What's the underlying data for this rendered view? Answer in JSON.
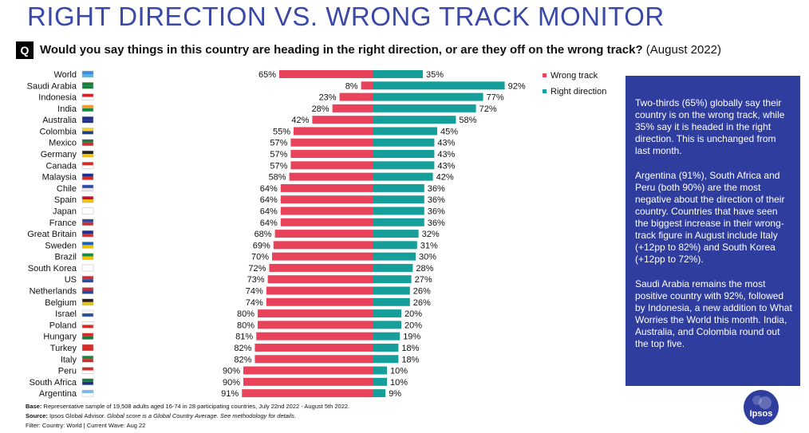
{
  "header": {
    "title": "RIGHT DIRECTION VS. WRONG TRACK MONITOR",
    "badge": "Q",
    "question": "Would you say things in this country are heading in the right direction, or are they off on the wrong track?",
    "date": "(August 2022)"
  },
  "colors": {
    "wrong": "#e8435a",
    "right": "#169f9a",
    "box": "#2f3d9e",
    "title": "#3a49a8"
  },
  "chart_data": {
    "type": "bar",
    "orientation": "horizontal-diverging",
    "categories": [
      "World",
      "Saudi Arabia",
      "Indonesia",
      "India",
      "Australia",
      "Colombia",
      "Mexico",
      "Germany",
      "Canada",
      "Malaysia",
      "Chile",
      "Spain",
      "Japan",
      "France",
      "Great Britain",
      "Sweden",
      "Brazil",
      "South Korea",
      "US",
      "Netherlands",
      "Belgium",
      "Israel",
      "Poland",
      "Hungary",
      "Turkey",
      "Italy",
      "Peru",
      "South Africa",
      "Argentina"
    ],
    "series": [
      {
        "name": "Wrong track",
        "values": [
          65,
          8,
          23,
          28,
          42,
          55,
          57,
          57,
          57,
          58,
          64,
          64,
          64,
          64,
          68,
          69,
          70,
          72,
          73,
          74,
          74,
          80,
          80,
          81,
          82,
          82,
          90,
          90,
          91
        ]
      },
      {
        "name": "Right direction",
        "values": [
          35,
          92,
          77,
          72,
          58,
          45,
          43,
          43,
          43,
          42,
          36,
          36,
          36,
          36,
          32,
          31,
          30,
          28,
          27,
          26,
          26,
          20,
          20,
          19,
          18,
          18,
          10,
          10,
          9
        ]
      }
    ],
    "value_suffix": "%",
    "legend": [
      "Wrong track",
      "Right direction"
    ],
    "legend_position": "right"
  },
  "legend": {
    "wrong_label": "Wrong track",
    "right_label": "Right direction"
  },
  "info_box": {
    "p1": "Two-thirds (65%) globally say their country is on the wrong track, while 35% say it is headed in the right direction. This is unchanged from last month.",
    "p2": "Argentina (91%), South Africa and Peru (both 90%) are the most negative about the direction of their country. Countries that have seen the biggest increase in their wrong-track figure in August include Italy (+12pp to 82%) and South Korea (+12pp to 72%).",
    "p3": "Saudi Arabia remains the most positive country with 92%, followed by Indonesia, a new addition to What Worries the World this month. India, Australia, and Colombia round out the top five."
  },
  "footer": {
    "base_label": "Base:",
    "base_text": "Representative sample of 19,508 adults aged 16-74 in 28 participating countries, July 22nd 2022 - August 5th 2022.",
    "source_label": "Source:",
    "source_text": "Ipsos Global Advisor.",
    "source_note": "Global score is a Global Country Average. See methodology for details.",
    "filter": "Filter: Country: World | Current Wave: Aug 22"
  },
  "logo": {
    "text": "Ipsos"
  }
}
